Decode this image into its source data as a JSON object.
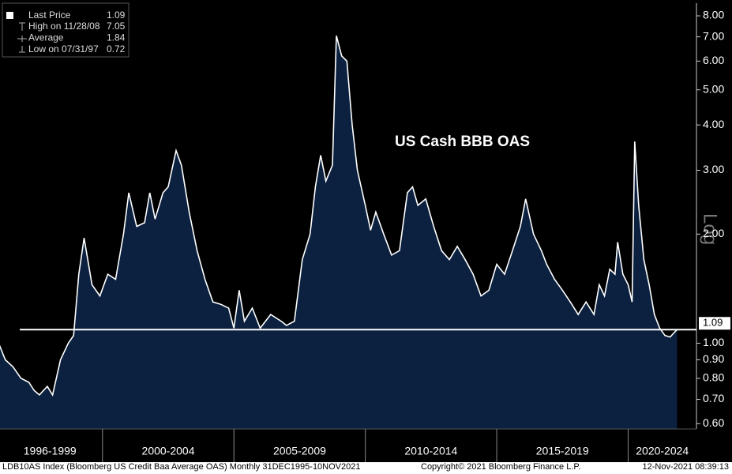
{
  "chart_data": {
    "type": "area",
    "title": "US Cash BBB OAS",
    "y_scale": "log",
    "scale_label": "Log",
    "xlim": [
      1996.1,
      2022.6
    ],
    "ylim": [
      0.58,
      8.67
    ],
    "xticks": [
      {
        "value": 1998,
        "label": "1996-1999"
      },
      {
        "value": 2002.5,
        "label": "2000-2004"
      },
      {
        "value": 2007.5,
        "label": "2005-2009"
      },
      {
        "value": 2012.5,
        "label": "2010-2014"
      },
      {
        "value": 2017.5,
        "label": "2015-2019"
      },
      {
        "value": 2021.3,
        "label": "2020-2024"
      }
    ],
    "x_separators": [
      2000,
      2005,
      2010,
      2015,
      2020
    ],
    "yticks": [
      {
        "value": 0.6,
        "label": "0.60"
      },
      {
        "value": 0.7,
        "label": "0.70"
      },
      {
        "value": 0.8,
        "label": "0.80"
      },
      {
        "value": 0.9,
        "label": "0.90"
      },
      {
        "value": 1,
        "label": "1.00"
      },
      {
        "value": 2,
        "label": "2.00"
      },
      {
        "value": 3,
        "label": "3.00"
      },
      {
        "value": 4,
        "label": "4.00"
      },
      {
        "value": 5,
        "label": "5.00"
      },
      {
        "value": 6,
        "label": "6.00"
      },
      {
        "value": 7,
        "label": "7.00"
      },
      {
        "value": 8,
        "label": "8.00"
      }
    ],
    "x": [
      1996.0,
      1996.3,
      1996.6,
      1996.9,
      1997.2,
      1997.4,
      1997.6,
      1997.9,
      1998.1,
      1998.4,
      1998.7,
      1998.9,
      1999.1,
      1999.3,
      1999.6,
      1999.9,
      2000.2,
      2000.5,
      2000.8,
      2001.0,
      2001.3,
      2001.6,
      2001.8,
      2002.0,
      2002.3,
      2002.5,
      2002.8,
      2003.0,
      2003.3,
      2003.6,
      2003.9,
      2004.2,
      2004.5,
      2004.8,
      2005.0,
      2005.2,
      2005.4,
      2005.7,
      2006.0,
      2006.4,
      2006.8,
      2007.0,
      2007.3,
      2007.6,
      2007.9,
      2008.1,
      2008.3,
      2008.5,
      2008.75,
      2008.9,
      2009.1,
      2009.3,
      2009.5,
      2009.7,
      2010.0,
      2010.2,
      2010.4,
      2010.7,
      2011.0,
      2011.3,
      2011.6,
      2011.8,
      2012.0,
      2012.3,
      2012.6,
      2012.9,
      2013.2,
      2013.5,
      2013.8,
      2014.1,
      2014.4,
      2014.7,
      2015.0,
      2015.3,
      2015.6,
      2015.9,
      2016.1,
      2016.4,
      2016.7,
      2016.9,
      2017.2,
      2017.5,
      2017.8,
      2018.1,
      2018.4,
      2018.7,
      2018.9,
      2019.1,
      2019.3,
      2019.5,
      2019.6,
      2019.8,
      2020.0,
      2020.15,
      2020.25,
      2020.4,
      2020.6,
      2020.8,
      2021.0,
      2021.2,
      2021.4,
      2021.6,
      2021.75,
      2021.86
    ],
    "series": [
      {
        "name": "Last Price",
        "color": "#ffffff",
        "fill": "#0b213f",
        "values": [
          1.02,
          0.9,
          0.86,
          0.8,
          0.78,
          0.74,
          0.72,
          0.76,
          0.72,
          0.9,
          1.0,
          1.05,
          1.55,
          1.95,
          1.45,
          1.35,
          1.55,
          1.5,
          2.0,
          2.6,
          2.1,
          2.15,
          2.6,
          2.2,
          2.6,
          2.7,
          3.4,
          3.1,
          2.3,
          1.8,
          1.5,
          1.3,
          1.28,
          1.25,
          1.1,
          1.4,
          1.15,
          1.25,
          1.1,
          1.2,
          1.15,
          1.12,
          1.15,
          1.7,
          2.0,
          2.7,
          3.3,
          2.8,
          3.1,
          7.05,
          6.2,
          6.0,
          4.0,
          3.0,
          2.4,
          2.05,
          2.3,
          2.0,
          1.75,
          1.8,
          2.6,
          2.7,
          2.4,
          2.5,
          2.1,
          1.8,
          1.7,
          1.85,
          1.7,
          1.55,
          1.35,
          1.4,
          1.65,
          1.55,
          1.8,
          2.1,
          2.5,
          2.0,
          1.8,
          1.65,
          1.5,
          1.4,
          1.3,
          1.2,
          1.3,
          1.2,
          1.45,
          1.35,
          1.6,
          1.55,
          1.9,
          1.55,
          1.45,
          1.3,
          3.6,
          2.4,
          1.7,
          1.45,
          1.2,
          1.1,
          1.05,
          1.04,
          1.07,
          1.09
        ]
      }
    ],
    "last_price": 1.09,
    "stats": [
      {
        "label": "High on 11/28/08",
        "value": 7.05
      },
      {
        "label": "Average",
        "value": 1.84
      },
      {
        "label": "Low on 07/31/97",
        "value": 0.72
      }
    ],
    "footer": {
      "source": "LDB10AS Index (Bloomberg US Credit Baa Average OAS)  Monthly 31DEC1995-10NOV2021",
      "copyright": "Copyright© 2021 Bloomberg Finance L.P.",
      "timestamp": "12-Nov-2021 08:39:13"
    }
  }
}
